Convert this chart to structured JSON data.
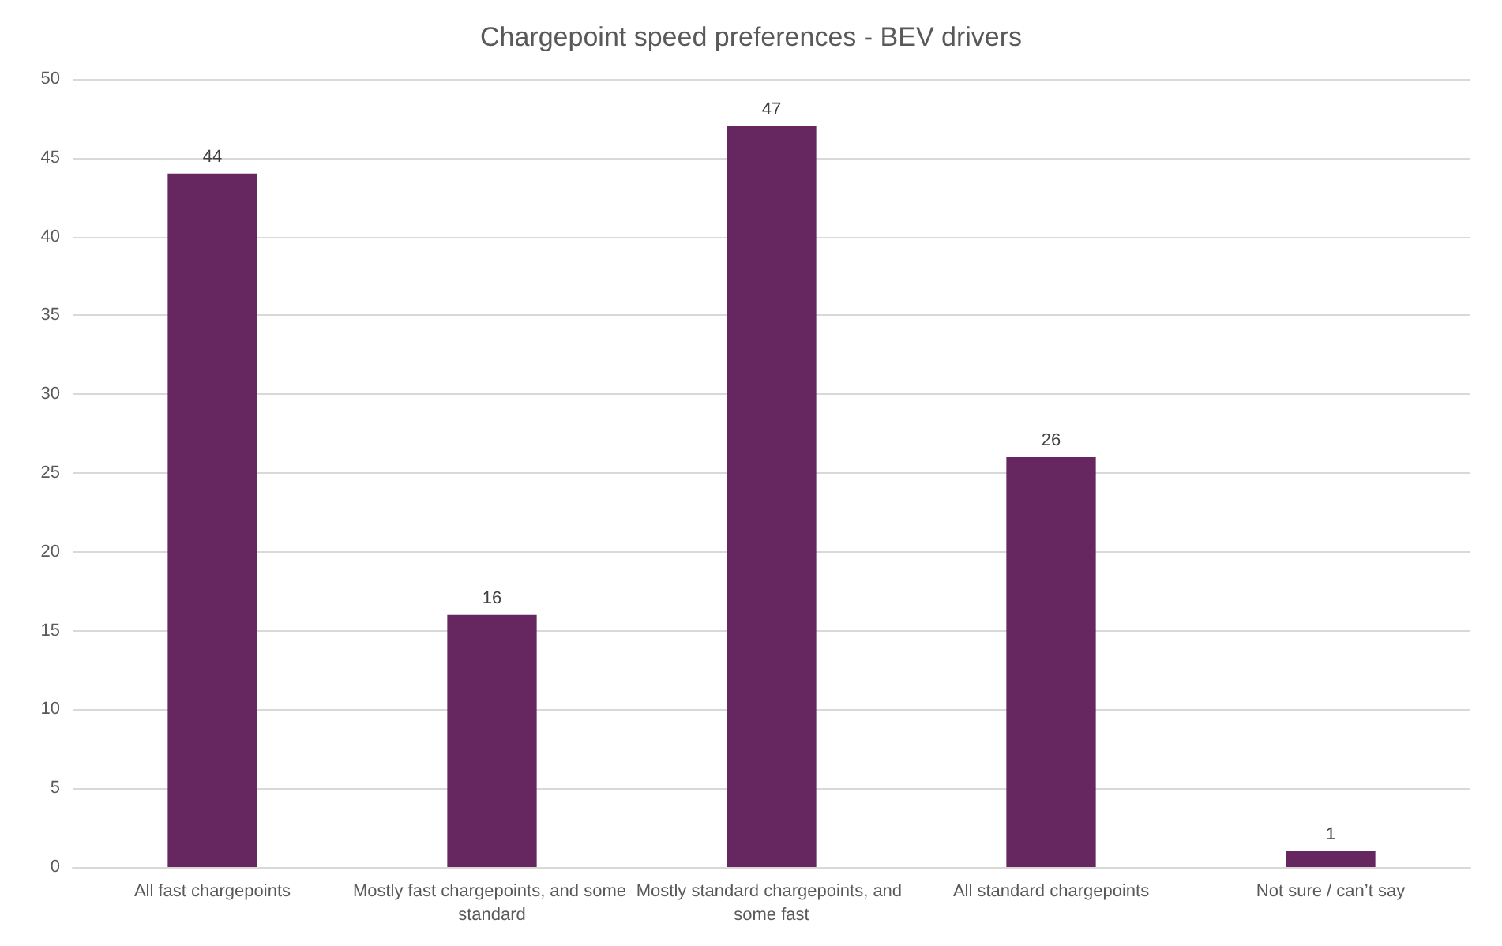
{
  "chart_data": {
    "type": "bar",
    "title": "Chargepoint speed preferences - BEV drivers",
    "categories": [
      "All fast chargepoints",
      "Mostly fast chargepoints, and some standard",
      "Mostly standard chargepoints, and some fast",
      "All standard chargepoints",
      "Not sure / can’t say"
    ],
    "values": [
      44,
      16,
      47,
      26,
      1
    ],
    "color": "#662660",
    "ylim": [
      0,
      50
    ],
    "yticks": [
      0,
      5,
      10,
      15,
      20,
      25,
      30,
      35,
      40,
      45,
      50
    ],
    "grid": "y",
    "data_labels": true
  }
}
